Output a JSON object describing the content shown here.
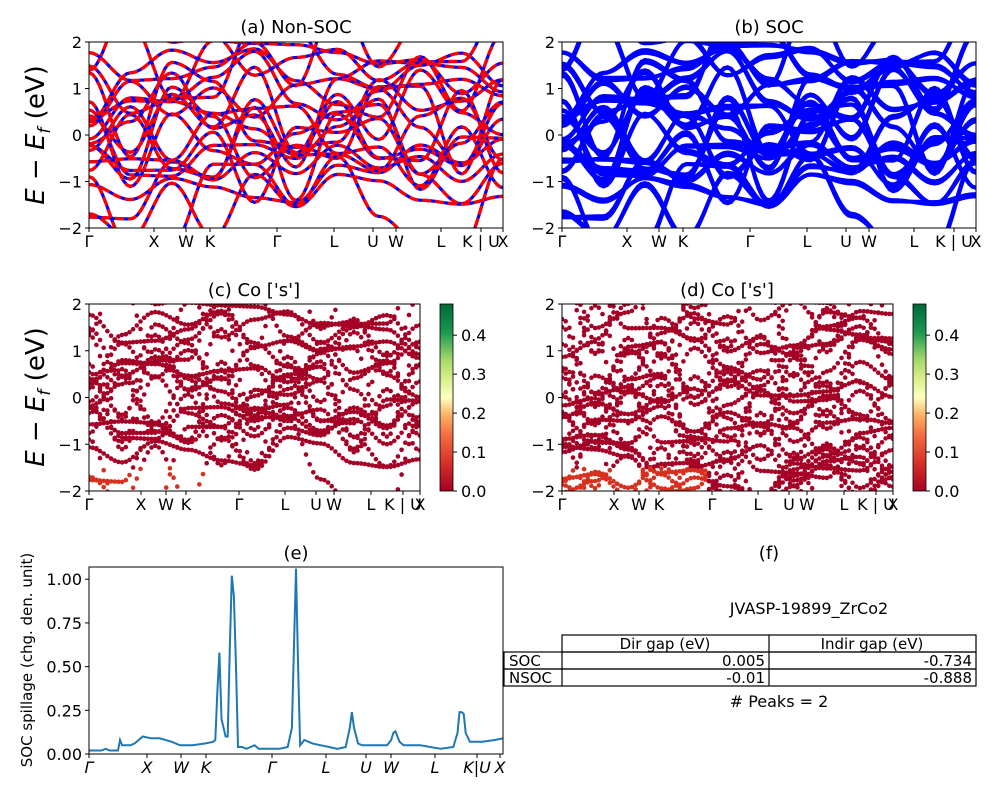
{
  "chart_data": [
    {
      "type": "line",
      "panel": "a",
      "title": "(a) Non-SOC",
      "ylabel": "E − E_f (eV)",
      "ylim": [
        -2,
        2
      ],
      "yticks": [
        -2,
        -1,
        0,
        1,
        2
      ],
      "xticks": [
        "Γ",
        "X",
        "W",
        "K",
        "Γ",
        "L",
        "U",
        "W",
        "L",
        "K | U",
        "X"
      ],
      "series": [
        {
          "color": "#0000ff",
          "style": "solid"
        },
        {
          "color": "#ff0000",
          "style": "dashed"
        }
      ],
      "note": "dense electronic band structure; individual bands not labeled"
    },
    {
      "type": "line",
      "panel": "b",
      "title": "(b) SOC",
      "ylim": [
        -2,
        2
      ],
      "yticks": [
        -2,
        -1,
        0,
        1,
        2
      ],
      "xticks": [
        "Γ",
        "X",
        "W",
        "K",
        "Γ",
        "L",
        "U",
        "W",
        "L",
        "K | U",
        "X"
      ],
      "series": [
        {
          "color": "#0000ff",
          "style": "solid"
        }
      ]
    },
    {
      "type": "scatter",
      "panel": "c",
      "title": "(c)  Co ['s']",
      "ylabel": "E − E_f (eV)",
      "ylim": [
        -2,
        2
      ],
      "yticks": [
        -2,
        -1,
        0,
        1,
        2
      ],
      "xticks": [
        "Γ",
        "X",
        "W",
        "K",
        "Γ",
        "L",
        "U",
        "W",
        "L",
        "K | U",
        "X"
      ],
      "colorbar": {
        "min": 0.0,
        "max": 0.48,
        "ticks": [
          "0.0",
          "0.1",
          "0.2",
          "0.3",
          "0.4"
        ],
        "colormap": "RdYlGn"
      }
    },
    {
      "type": "scatter",
      "panel": "d",
      "title": "(d) Co ['s']",
      "ylim": [
        -2,
        2
      ],
      "yticks": [
        -2,
        -1,
        0,
        1,
        2
      ],
      "xticks": [
        "Γ",
        "X",
        "W",
        "K",
        "Γ",
        "L",
        "U",
        "W",
        "L",
        "K | U",
        "X"
      ],
      "colorbar": {
        "min": 0.0,
        "max": 0.48,
        "ticks": [
          "0.0",
          "0.1",
          "0.2",
          "0.3",
          "0.4"
        ],
        "colormap": "RdYlGn"
      }
    },
    {
      "type": "line",
      "panel": "e",
      "title": "(e)",
      "ylabel": "SOC spillage (chg. den. unit)",
      "ylim": [
        0,
        1.07
      ],
      "yticks": [
        "0.00",
        "0.25",
        "0.50",
        "0.75",
        "1.00"
      ],
      "xticks": [
        "Γ",
        "X",
        "W",
        "K",
        "Γ",
        "L",
        "U",
        "W",
        "L",
        "K|U",
        "X"
      ],
      "color": "#1f77b4",
      "x": [
        0,
        0.03,
        0.04,
        0.05,
        0.07,
        0.075,
        0.08,
        0.1,
        0.11,
        0.13,
        0.15,
        0.17,
        0.2,
        0.22,
        0.25,
        0.28,
        0.3,
        0.305,
        0.31,
        0.315,
        0.32,
        0.33,
        0.335,
        0.34,
        0.345,
        0.35,
        0.355,
        0.36,
        0.37,
        0.38,
        0.39,
        0.4,
        0.41,
        0.43,
        0.46,
        0.48,
        0.49,
        0.495,
        0.5,
        0.505,
        0.51,
        0.52,
        0.54,
        0.56,
        0.58,
        0.6,
        0.62,
        0.63,
        0.635,
        0.64,
        0.65,
        0.66,
        0.7,
        0.72,
        0.73,
        0.735,
        0.74,
        0.75,
        0.76,
        0.8,
        0.85,
        0.88,
        0.89,
        0.895,
        0.9,
        0.905,
        0.91,
        0.92,
        0.95,
        0.98,
        1.0
      ],
      "values": [
        0.02,
        0.02,
        0.03,
        0.02,
        0.02,
        0.08,
        0.05,
        0.05,
        0.06,
        0.1,
        0.09,
        0.09,
        0.07,
        0.05,
        0.05,
        0.06,
        0.07,
        0.08,
        0.35,
        0.58,
        0.2,
        0.1,
        0.1,
        0.6,
        1.02,
        0.9,
        0.5,
        0.04,
        0.04,
        0.03,
        0.04,
        0.05,
        0.03,
        0.03,
        0.03,
        0.04,
        0.15,
        0.6,
        1.06,
        0.5,
        0.05,
        0.08,
        0.06,
        0.05,
        0.04,
        0.03,
        0.04,
        0.15,
        0.24,
        0.15,
        0.06,
        0.05,
        0.05,
        0.05,
        0.08,
        0.12,
        0.13,
        0.07,
        0.05,
        0.05,
        0.03,
        0.04,
        0.12,
        0.24,
        0.24,
        0.23,
        0.12,
        0.07,
        0.07,
        0.08,
        0.09
      ]
    },
    {
      "type": "table",
      "panel": "f",
      "title": "(f)",
      "subtitle": "JVASP-19899_ZrCo2",
      "columns": [
        "Dir gap (eV)",
        "Indir gap (eV)"
      ],
      "rows": [
        {
          "label": "SOC",
          "values": [
            "0.005",
            "-0.734"
          ]
        },
        {
          "label": "NSOC",
          "values": [
            "-0.01",
            "-0.888"
          ]
        }
      ],
      "footer": "# Peaks = 2"
    }
  ]
}
